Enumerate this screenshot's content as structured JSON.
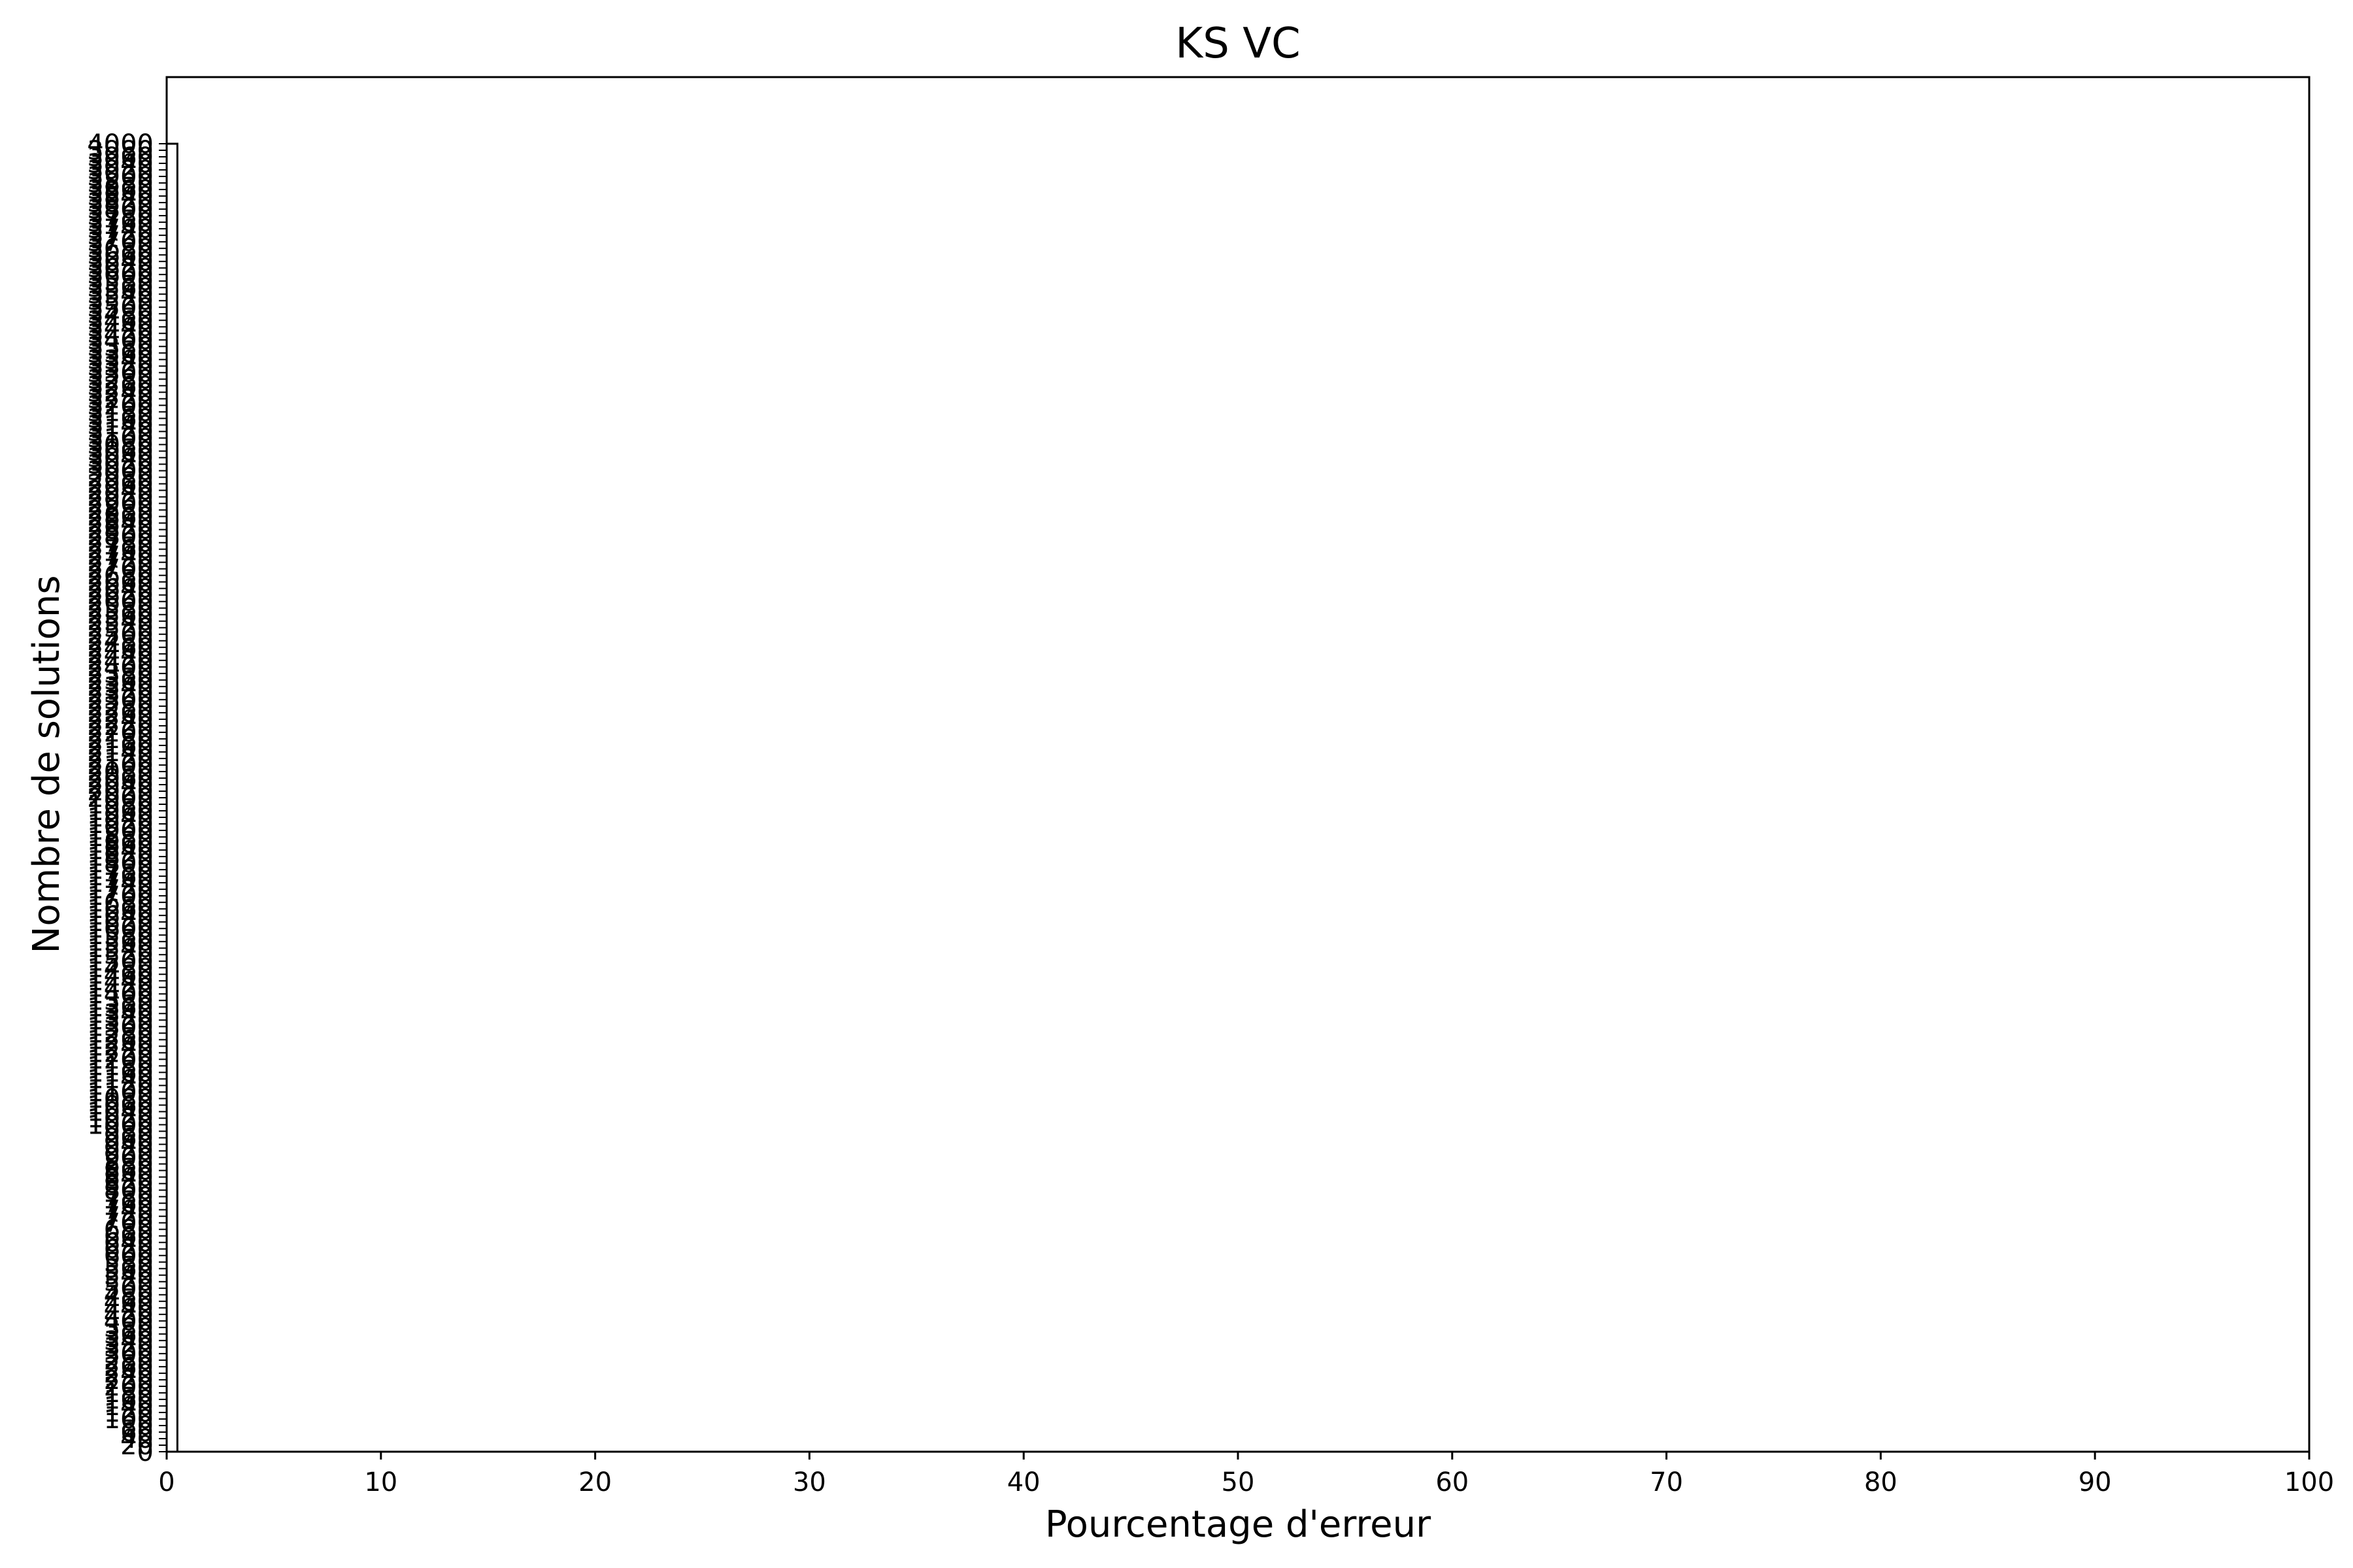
{
  "chart_data": {
    "type": "bar",
    "title": "KS VC",
    "xlabel": "Pourcentage d'erreur",
    "ylabel": "Nombre de solutions",
    "xlim": [
      0,
      100
    ],
    "ylim": [
      0,
      4000
    ],
    "x_ticks": [
      0,
      10,
      20,
      30,
      40,
      50,
      60,
      70,
      80,
      90,
      100
    ],
    "y_ticks": [
      "0",
      "20",
      "40",
      "60",
      "80",
      "100",
      "120",
      "140",
      "160",
      "180",
      "200",
      "220",
      "240",
      "260",
      "280",
      "300",
      "320",
      "340",
      "360",
      "380",
      "400",
      "420",
      "440",
      "460",
      "480",
      "500",
      "520",
      "540",
      "560",
      "580",
      "600",
      "620",
      "640",
      "660",
      "680",
      "700",
      "720",
      "740",
      "760",
      "780",
      "800",
      "820",
      "840",
      "860",
      "880",
      "900",
      "920",
      "940",
      "960",
      "980",
      "1000",
      "1020",
      "1040",
      "1060",
      "1080",
      "1100",
      "1120",
      "1140",
      "1160",
      "1180",
      "1200",
      "1220",
      "1240",
      "1260",
      "1280",
      "1300",
      "1320",
      "1340",
      "1360",
      "1380",
      "1400",
      "1420",
      "1440",
      "1460",
      "1480",
      "1500",
      "1520",
      "1540",
      "1560",
      "1580",
      "1600",
      "1620",
      "1640",
      "1660",
      "1680",
      "1700",
      "1720",
      "1740",
      "1760",
      "1780",
      "1800",
      "1820",
      "1840",
      "1860",
      "1880",
      "1900",
      "1920",
      "1940",
      "1960",
      "1980",
      "2000",
      "2020",
      "2040",
      "2060",
      "2080",
      "2100",
      "2120",
      "2140",
      "2160",
      "2180",
      "2200",
      "2220",
      "2240",
      "2260",
      "2280",
      "2300",
      "2320",
      "2340",
      "2360",
      "2380",
      "2400",
      "2420",
      "2440",
      "2460",
      "2480",
      "2500",
      "2520",
      "2540",
      "2560",
      "2580",
      "2600",
      "2620",
      "2640",
      "2660",
      "2680",
      "2700",
      "2720",
      "2740",
      "2760",
      "2780",
      "2800",
      "2820",
      "2840",
      "2860",
      "2880",
      "2900",
      "2920",
      "2940",
      "2960",
      "2980",
      "3000",
      "3020",
      "3040",
      "3060",
      "3080",
      "3100",
      "3120",
      "3140",
      "3160",
      "3180",
      "3200",
      "3220",
      "3240",
      "3260",
      "3280",
      "3300",
      "3320",
      "3340",
      "3360",
      "3380",
      "3400",
      "3420",
      "3440",
      "3460",
      "3480",
      "3500",
      "3520",
      "3540",
      "3560",
      "3580",
      "3600",
      "3620",
      "3640",
      "3660",
      "3680",
      "3700",
      "3720",
      "3740",
      "3760",
      "3780",
      "3800",
      "3820",
      "3840",
      "3860",
      "3880",
      "3900",
      "3920",
      "3940",
      "3960",
      "3980",
      "4000"
    ],
    "bars": [
      {
        "x0": 0,
        "x1": 0.5,
        "value": 4000
      }
    ],
    "grid": false,
    "legend": "none"
  },
  "colors": {
    "bar_fill": "#ffffff",
    "bar_edge": "#000000",
    "axes": "#000000"
  }
}
